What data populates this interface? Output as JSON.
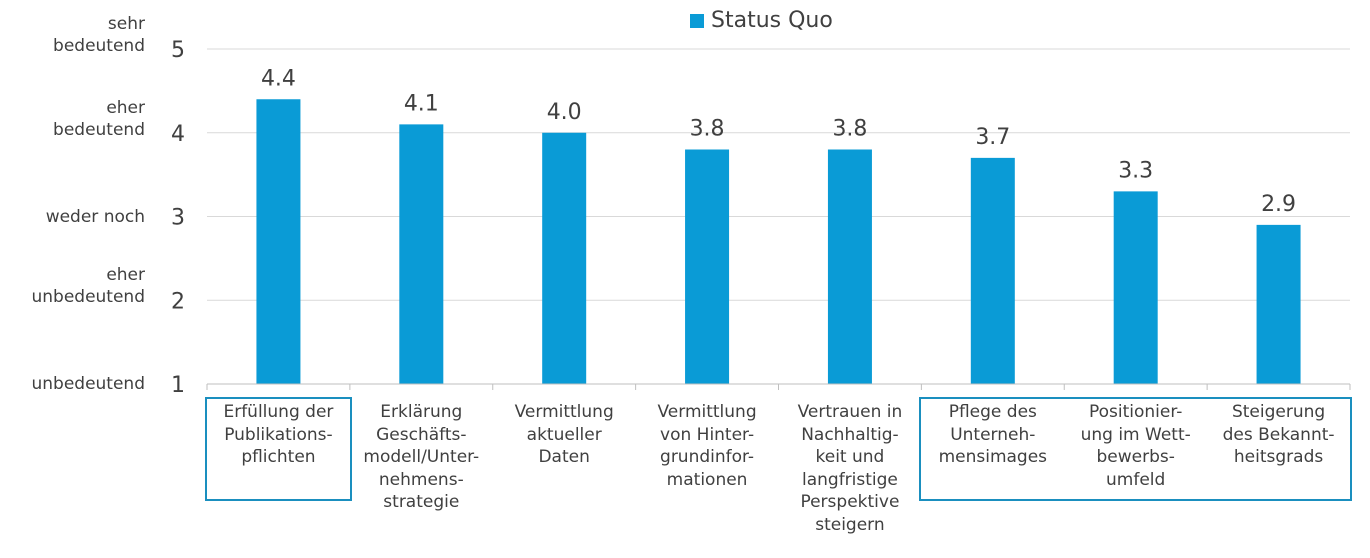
{
  "chart_data": {
    "type": "bar",
    "categories": [
      "Erfüllung der Publikations-pflichten",
      "Erklärung Geschäfts-modell/Unter-nehmens-strategie",
      "Vermittlung aktueller Daten",
      "Vermittlung von Hinter-grundinfor-mationen",
      "Vertrauen in Nachhaltig-keit und langfristige Perspektive steigern",
      "Pflege des Unterneh-mensimages",
      "Positionier-ung im Wett-bewerbs-umfeld",
      "Steigerung des Bekannt-heitsgrads"
    ],
    "category_lines": [
      [
        "Erfüllung der",
        "Publikations-",
        "pflichten"
      ],
      [
        "Erklärung",
        "Geschäfts-",
        "modell/Unter-",
        "nehmens-",
        "strategie"
      ],
      [
        "Vermittlung",
        "aktueller",
        "Daten"
      ],
      [
        "Vermittlung",
        "von Hinter-",
        "grundinfor-",
        "mationen"
      ],
      [
        "Vertrauen in",
        "Nachhaltig-",
        "keit und",
        "langfristige",
        "Perspektive",
        "steigern"
      ],
      [
        "Pflege des",
        "Unterneh-",
        "mensimages"
      ],
      [
        "Positionier-",
        "ung im Wett-",
        "bewerbs-",
        "umfeld"
      ],
      [
        "Steigerung",
        "des Bekannt-",
        "heitsgrads"
      ]
    ],
    "series": [
      {
        "name": "Status Quo",
        "values": [
          4.4,
          4.1,
          4.0,
          3.8,
          3.8,
          3.7,
          3.3,
          2.9
        ]
      }
    ],
    "value_labels": [
      "4.4",
      "4.1",
      "4.0",
      "3.8",
      "3.8",
      "3.7",
      "3.3",
      "2.9"
    ],
    "ylim": [
      1,
      5
    ],
    "yticks": [
      1,
      2,
      3,
      4,
      5
    ],
    "ytick_labels": [
      [
        "unbedeutend"
      ],
      [
        "eher",
        "unbedeutend"
      ],
      [
        "weder noch"
      ],
      [
        "eher",
        "bedeutend"
      ],
      [
        "sehr",
        "bedeutend"
      ]
    ],
    "grid": true,
    "legend_position": "top-center",
    "bar_color": "#0a9bd6",
    "grid_color": "#d9d9d9",
    "highlight_box_color": "#1a8fbf",
    "highlighted_groups": [
      [
        0,
        0
      ],
      [
        5,
        7
      ]
    ]
  }
}
